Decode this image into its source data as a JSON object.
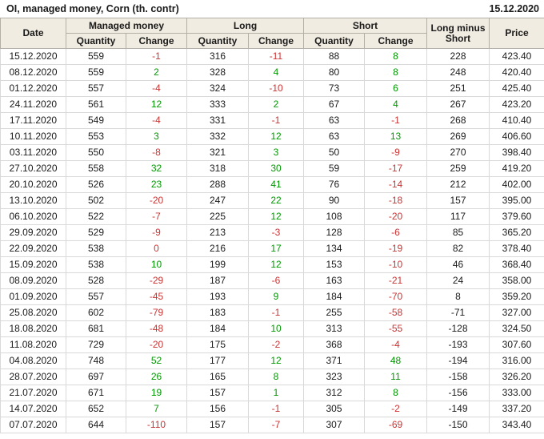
{
  "title": "OI, managed money, Corn (th. contr)",
  "report_date": "15.12.2020",
  "colors": {
    "positive_change": "#009900",
    "negative_change": "#cc3333",
    "zero_change": "#cc3333",
    "header_background": "#f1ece1",
    "grid_line": "#d9d9d9"
  },
  "table": {
    "group_headers": {
      "managed_money": "Managed money",
      "long": "Long",
      "short": "Short"
    },
    "headers": {
      "date": "Date",
      "quantity": "Quantity",
      "change": "Change",
      "long_minus_short": "Long minus Short",
      "price": "Price"
    },
    "columns_legend": [
      "date",
      "managed_quantity",
      "managed_change",
      "long_quantity",
      "long_change",
      "short_quantity",
      "short_change",
      "long_minus_short",
      "price"
    ],
    "rows": [
      [
        "15.12.2020",
        "559",
        "-1",
        "316",
        "-11",
        "88",
        "8",
        "228",
        "423.40"
      ],
      [
        "08.12.2020",
        "559",
        "2",
        "328",
        "4",
        "80",
        "8",
        "248",
        "420.40"
      ],
      [
        "01.12.2020",
        "557",
        "-4",
        "324",
        "-10",
        "73",
        "6",
        "251",
        "425.40"
      ],
      [
        "24.11.2020",
        "561",
        "12",
        "333",
        "2",
        "67",
        "4",
        "267",
        "423.20"
      ],
      [
        "17.11.2020",
        "549",
        "-4",
        "331",
        "-1",
        "63",
        "-1",
        "268",
        "410.40"
      ],
      [
        "10.11.2020",
        "553",
        "3",
        "332",
        "12",
        "63",
        "13",
        "269",
        "406.60"
      ],
      [
        "03.11.2020",
        "550",
        "-8",
        "321",
        "3",
        "50",
        "-9",
        "270",
        "398.40"
      ],
      [
        "27.10.2020",
        "558",
        "32",
        "318",
        "30",
        "59",
        "-17",
        "259",
        "419.20"
      ],
      [
        "20.10.2020",
        "526",
        "23",
        "288",
        "41",
        "76",
        "-14",
        "212",
        "402.00"
      ],
      [
        "13.10.2020",
        "502",
        "-20",
        "247",
        "22",
        "90",
        "-18",
        "157",
        "395.00"
      ],
      [
        "06.10.2020",
        "522",
        "-7",
        "225",
        "12",
        "108",
        "-20",
        "117",
        "379.60"
      ],
      [
        "29.09.2020",
        "529",
        "-9",
        "213",
        "-3",
        "128",
        "-6",
        "85",
        "365.20"
      ],
      [
        "22.09.2020",
        "538",
        "0",
        "216",
        "17",
        "134",
        "-19",
        "82",
        "378.40"
      ],
      [
        "15.09.2020",
        "538",
        "10",
        "199",
        "12",
        "153",
        "-10",
        "46",
        "368.40"
      ],
      [
        "08.09.2020",
        "528",
        "-29",
        "187",
        "-6",
        "163",
        "-21",
        "24",
        "358.00"
      ],
      [
        "01.09.2020",
        "557",
        "-45",
        "193",
        "9",
        "184",
        "-70",
        "8",
        "359.20"
      ],
      [
        "25.08.2020",
        "602",
        "-79",
        "183",
        "-1",
        "255",
        "-58",
        "-71",
        "327.00"
      ],
      [
        "18.08.2020",
        "681",
        "-48",
        "184",
        "10",
        "313",
        "-55",
        "-128",
        "324.50"
      ],
      [
        "11.08.2020",
        "729",
        "-20",
        "175",
        "-2",
        "368",
        "-4",
        "-193",
        "307.60"
      ],
      [
        "04.08.2020",
        "748",
        "52",
        "177",
        "12",
        "371",
        "48",
        "-194",
        "316.00"
      ],
      [
        "28.07.2020",
        "697",
        "26",
        "165",
        "8",
        "323",
        "11",
        "-158",
        "326.20"
      ],
      [
        "21.07.2020",
        "671",
        "19",
        "157",
        "1",
        "312",
        "8",
        "-156",
        "333.00"
      ],
      [
        "14.07.2020",
        "652",
        "7",
        "156",
        "-1",
        "305",
        "-2",
        "-149",
        "337.20"
      ],
      [
        "07.07.2020",
        "644",
        "-110",
        "157",
        "-7",
        "307",
        "-69",
        "-150",
        "343.40"
      ]
    ]
  }
}
